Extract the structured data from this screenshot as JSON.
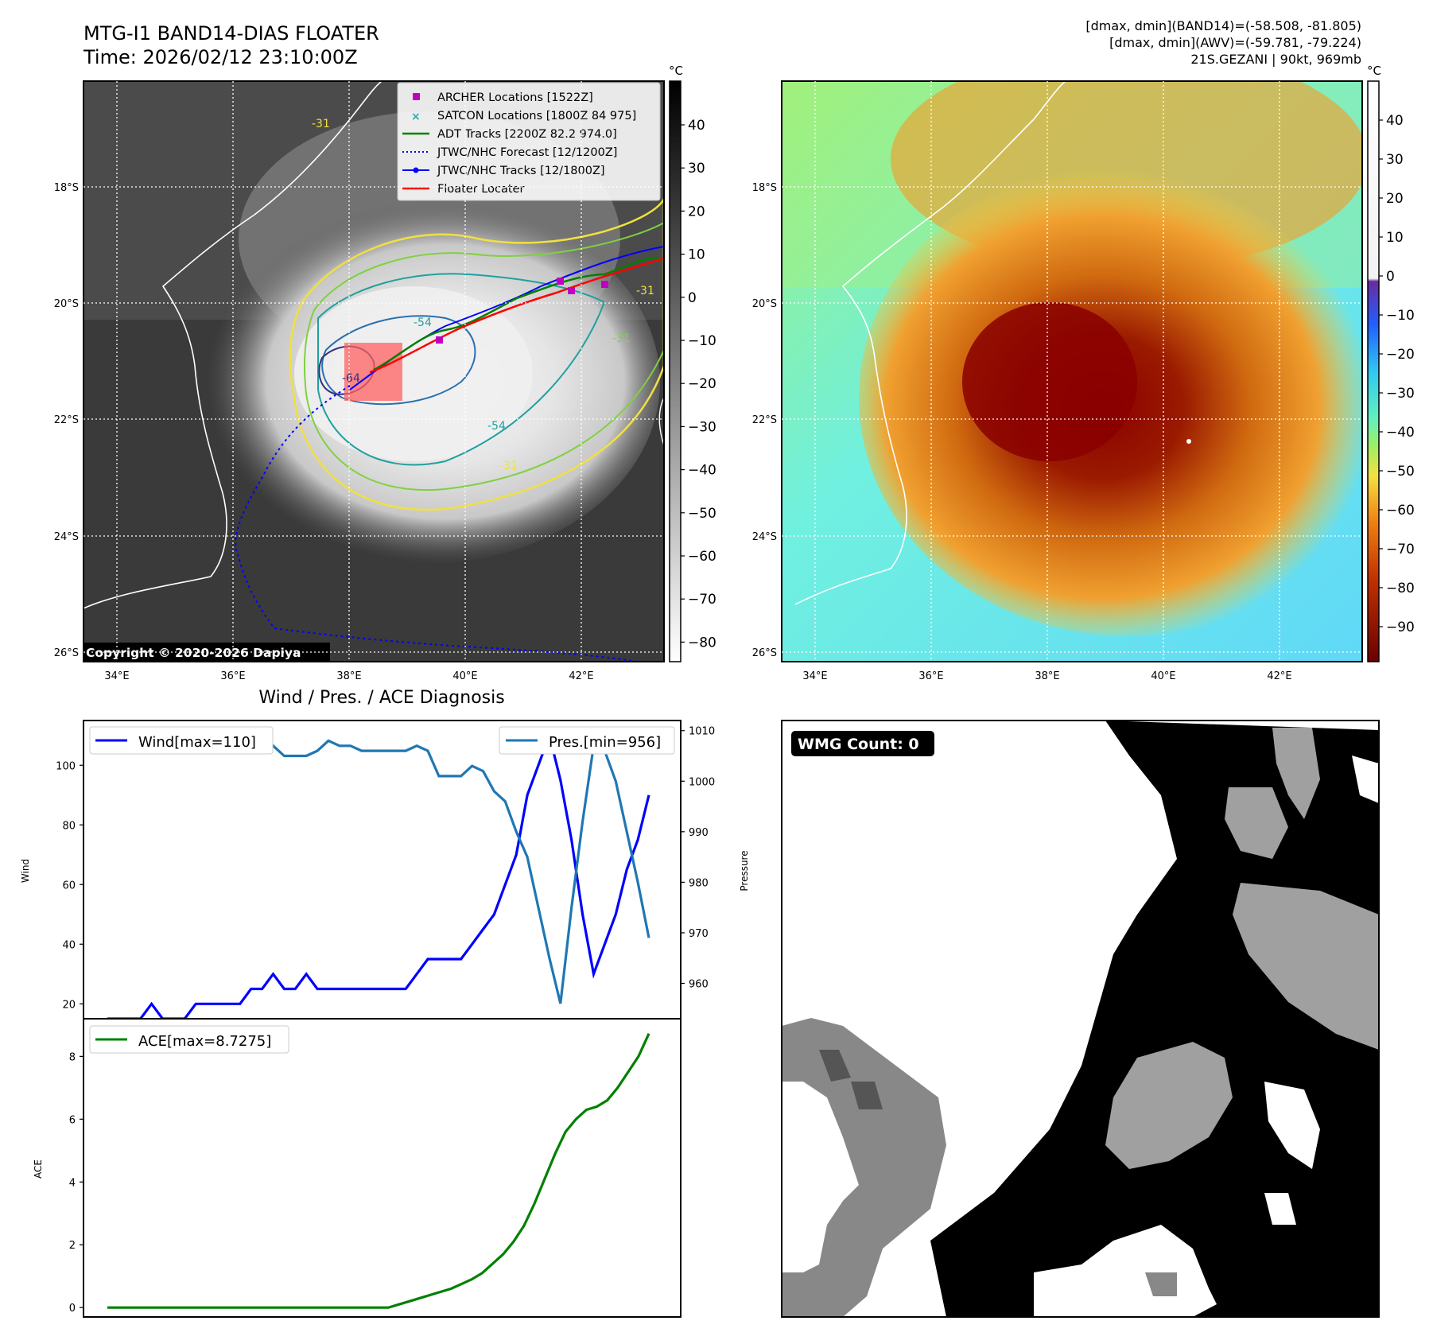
{
  "header": {
    "title_line1": "MTG-I1 BAND14-DIAS FLOATER",
    "title_line2": "Time: 2026/02/12 23:10:00Z",
    "right_line1": "[dmax, dmin](BAND14)=(-58.508, -81.805)",
    "right_line2": "[dmax, dmin](AWV)=(-59.781, -79.224)",
    "right_line3": "21S.GEZANI | 90kt, 969mb"
  },
  "maps": {
    "lon_ticks": [
      "34°E",
      "36°E",
      "38°E",
      "40°E",
      "42°E"
    ],
    "lat_ticks": [
      "18°S",
      "20°S",
      "22°S",
      "24°S",
      "26°S"
    ],
    "copyright": "Copyright © 2020-2026 Dapiya",
    "contour_labels": [
      "-31",
      "-54",
      "-31",
      "-31",
      "-54",
      "-31",
      "-64"
    ],
    "left_colorbar": {
      "unit": "°C",
      "ticks": [
        "40",
        "30",
        "20",
        "10",
        "0",
        "−10",
        "−20",
        "−30",
        "−40",
        "−50",
        "−60",
        "−70",
        "−80"
      ]
    },
    "right_colorbar": {
      "unit": "°C",
      "ticks": [
        "40",
        "30",
        "20",
        "10",
        "0",
        "−10",
        "−20",
        "−30",
        "−40",
        "−50",
        "−60",
        "−70",
        "−80",
        "−90"
      ]
    },
    "legend": [
      {
        "label": "ARCHER Locations [1522Z]",
        "color": "#c000c0",
        "marker": "square"
      },
      {
        "label": "SATCON Locations [1800Z 84 975]",
        "color": "#20b0b0",
        "marker": "x"
      },
      {
        "label": "ADT Tracks [2200Z 82.2 974.0]",
        "color": "#008000",
        "marker": "line"
      },
      {
        "label": "JTWC/NHC Forecast [12/1200Z]",
        "color": "#0000ff",
        "marker": "dotted"
      },
      {
        "label": "JTWC/NHC Tracks [12/1800Z]",
        "color": "#0000ff",
        "marker": "line-dot"
      },
      {
        "label": "Floater Locater",
        "color": "#ff0000",
        "marker": "line"
      }
    ]
  },
  "diagnosis": {
    "title": "Wind / Pres. / ACE Diagnosis",
    "wind_ylabel": "Wind",
    "pres_ylabel": "Pressure",
    "ace_ylabel": "ACE",
    "wind_legend": "Wind[max=110]",
    "pres_legend": "Pres.[min=956]",
    "ace_legend": "ACE[max=8.7275]",
    "wind_ticks": [
      "100",
      "80",
      "60",
      "40",
      "20"
    ],
    "pres_ticks": [
      "1010",
      "1000",
      "990",
      "980",
      "970",
      "960"
    ],
    "ace_ticks": [
      "8",
      "6",
      "4",
      "2",
      "0"
    ]
  },
  "wmg": {
    "label": "WMG Count: 0"
  },
  "chart_data": [
    {
      "type": "line",
      "title": "Wind / Pres. / ACE Diagnosis",
      "ylabel": "Wind",
      "ylim": [
        15,
        115
      ],
      "series": [
        {
          "name": "Wind[max=110]",
          "color": "#0000ff",
          "values": [
            15,
            15,
            15,
            15,
            20,
            15,
            15,
            15,
            20,
            20,
            20,
            20,
            20,
            25,
            25,
            30,
            25,
            25,
            30,
            25,
            25,
            25,
            25,
            25,
            25,
            25,
            25,
            25,
            30,
            35,
            35,
            35,
            35,
            40,
            45,
            50,
            60,
            70,
            90,
            100,
            110,
            95,
            75,
            50,
            30,
            40,
            50,
            65,
            75,
            90
          ]
        }
      ]
    },
    {
      "type": "line",
      "ylabel": "Pressure",
      "ylim": [
        953,
        1012
      ],
      "series": [
        {
          "name": "Pres.[min=956]",
          "color": "#1f77b4",
          "values": [
            1008,
            1008,
            1008,
            1010,
            1010,
            1010,
            1010,
            1010,
            1008,
            1007,
            1007,
            1007,
            1006,
            1006,
            1006,
            1007,
            1005,
            1005,
            1005,
            1006,
            1008,
            1007,
            1007,
            1006,
            1006,
            1006,
            1006,
            1006,
            1007,
            1006,
            1001,
            1001,
            1001,
            1003,
            1002,
            998,
            996,
            990,
            985,
            975,
            965,
            956,
            975,
            992,
            1007,
            1006,
            1000,
            990,
            980,
            969
          ]
        }
      ]
    },
    {
      "type": "line",
      "ylabel": "ACE",
      "ylim": [
        -0.3,
        9.2
      ],
      "series": [
        {
          "name": "ACE[max=8.7275]",
          "color": "#008000",
          "values": [
            0,
            0,
            0,
            0,
            0,
            0,
            0,
            0,
            0,
            0,
            0,
            0,
            0,
            0,
            0,
            0,
            0,
            0,
            0,
            0,
            0,
            0,
            0,
            0,
            0,
            0,
            0,
            0,
            0.1,
            0.2,
            0.3,
            0.4,
            0.5,
            0.6,
            0.75,
            0.9,
            1.1,
            1.4,
            1.7,
            2.1,
            2.6,
            3.3,
            4.1,
            4.9,
            5.6,
            6.0,
            6.3,
            6.4,
            6.6,
            7.0,
            7.5,
            8.0,
            8.7275
          ]
        }
      ]
    }
  ]
}
